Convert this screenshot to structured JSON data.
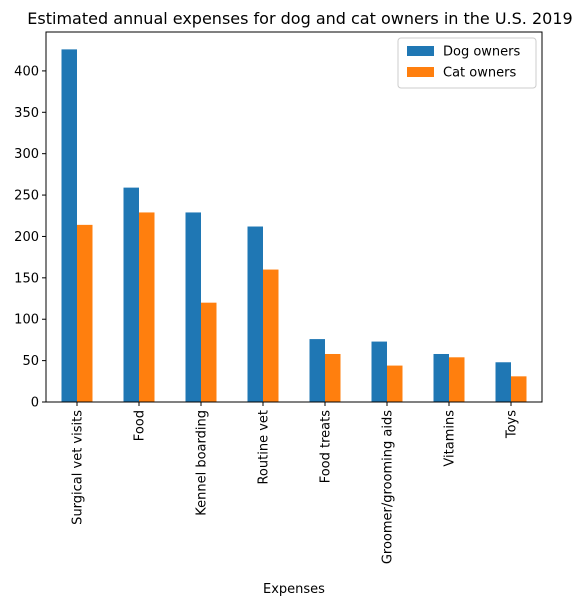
{
  "chart_data": {
    "type": "bar",
    "title": "Estimated annual expenses for dog and cat owners in the U.S. 2019",
    "xlabel": "Expenses",
    "ylabel": "",
    "categories": [
      "Surgical vet visits",
      "Food",
      "Kennel boarding",
      "Routine vet",
      "Food treats",
      "Groomer/grooming aids",
      "Vitamins",
      "Toys"
    ],
    "series": [
      {
        "name": "Dog owners",
        "color": "#1f77b4",
        "values": [
          426,
          259,
          229,
          212,
          76,
          73,
          58,
          48
        ]
      },
      {
        "name": "Cat owners",
        "color": "#ff7f0e",
        "values": [
          214,
          229,
          120,
          160,
          58,
          44,
          54,
          31
        ]
      }
    ],
    "ylim": [
      0,
      447
    ],
    "yticks": [
      0,
      50,
      100,
      150,
      200,
      250,
      300,
      350,
      400
    ],
    "grid": false,
    "legend_position": "top-right"
  }
}
